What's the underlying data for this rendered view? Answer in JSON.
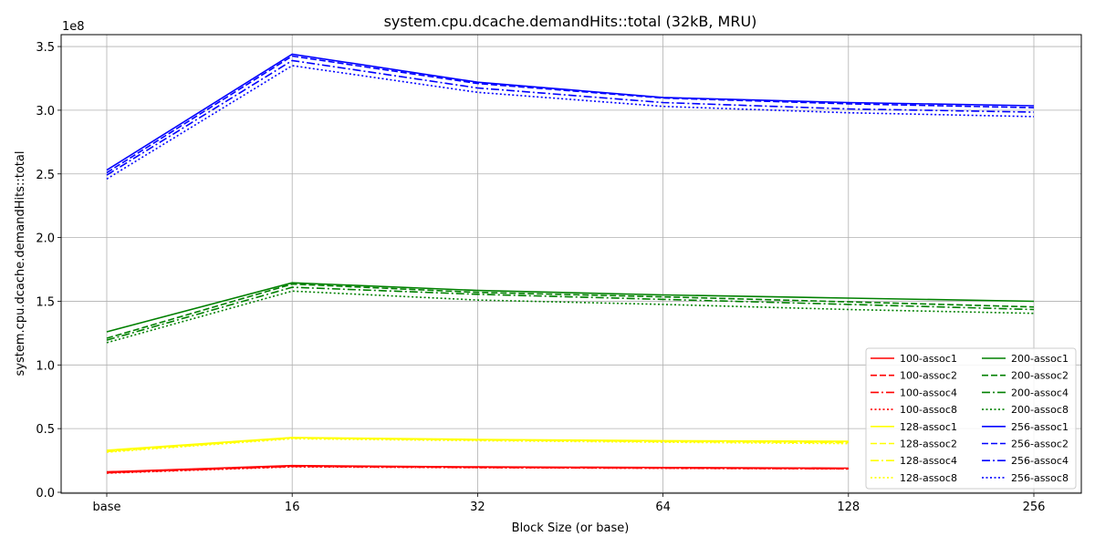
{
  "chart_data": {
    "type": "line",
    "title": "system.cpu.dcache.demandHits::total (32kB, MRU)",
    "xlabel": "Block Size (or base)",
    "ylabel": "system.cpu.dcache.demandHits::total",
    "categories": [
      "base",
      "16",
      "32",
      "64",
      "128",
      "256"
    ],
    "y_multiplier_label": "1e8",
    "ylim": [
      0,
      3.6
    ],
    "yticks": [
      "0.0",
      "0.5",
      "1.0",
      "1.5",
      "2.0",
      "2.5",
      "3.0",
      "3.5"
    ],
    "grid": true,
    "legend_placement": "lower-right",
    "series": [
      {
        "name": "100-assoc1",
        "color": "#ff0000",
        "dash": "solid",
        "values": [
          0.16,
          0.21,
          0.2,
          0.195,
          0.19,
          null
        ]
      },
      {
        "name": "100-assoc2",
        "color": "#ff0000",
        "dash": "dashed",
        "values": [
          0.155,
          0.205,
          0.197,
          0.192,
          0.187,
          null
        ]
      },
      {
        "name": "100-assoc4",
        "color": "#ff0000",
        "dash": "dashdot",
        "values": [
          0.153,
          0.203,
          0.195,
          0.19,
          0.185,
          null
        ]
      },
      {
        "name": "100-assoc8",
        "color": "#ff0000",
        "dash": "dotted",
        "values": [
          0.15,
          0.2,
          0.193,
          0.188,
          0.183,
          null
        ]
      },
      {
        "name": "128-assoc1",
        "color": "#ffff00",
        "dash": "solid",
        "values": [
          0.33,
          0.43,
          0.415,
          0.405,
          0.4,
          null
        ]
      },
      {
        "name": "128-assoc2",
        "color": "#ffff00",
        "dash": "dashed",
        "values": [
          0.325,
          0.428,
          0.412,
          0.402,
          0.395,
          null
        ]
      },
      {
        "name": "128-assoc4",
        "color": "#ffff00",
        "dash": "dashdot",
        "values": [
          0.32,
          0.425,
          0.41,
          0.398,
          0.39,
          null
        ]
      },
      {
        "name": "128-assoc8",
        "color": "#ffff00",
        "dash": "dotted",
        "values": [
          0.315,
          0.42,
          0.405,
          0.393,
          0.382,
          null
        ]
      },
      {
        "name": "200-assoc1",
        "color": "#008000",
        "dash": "solid",
        "values": [
          1.26,
          1.645,
          1.585,
          1.55,
          1.525,
          1.5
        ]
      },
      {
        "name": "200-assoc2",
        "color": "#008000",
        "dash": "dashed",
        "values": [
          1.21,
          1.635,
          1.57,
          1.535,
          1.495,
          1.455
        ]
      },
      {
        "name": "200-assoc4",
        "color": "#008000",
        "dash": "dashdot",
        "values": [
          1.195,
          1.61,
          1.555,
          1.515,
          1.475,
          1.435
        ]
      },
      {
        "name": "200-assoc8",
        "color": "#008000",
        "dash": "dotted",
        "values": [
          1.175,
          1.58,
          1.51,
          1.475,
          1.435,
          1.405
        ]
      },
      {
        "name": "256-assoc1",
        "color": "#0000ff",
        "dash": "solid",
        "values": [
          2.53,
          3.44,
          3.22,
          3.1,
          3.06,
          3.035
        ]
      },
      {
        "name": "256-assoc2",
        "color": "#0000ff",
        "dash": "dashed",
        "values": [
          2.51,
          3.425,
          3.21,
          3.095,
          3.05,
          3.02
        ]
      },
      {
        "name": "256-assoc4",
        "color": "#0000ff",
        "dash": "dashdot",
        "values": [
          2.49,
          3.39,
          3.175,
          3.06,
          3.01,
          2.985
        ]
      },
      {
        "name": "256-assoc8",
        "color": "#0000ff",
        "dash": "dotted",
        "values": [
          2.46,
          3.35,
          3.14,
          3.03,
          2.98,
          2.95
        ]
      }
    ]
  }
}
